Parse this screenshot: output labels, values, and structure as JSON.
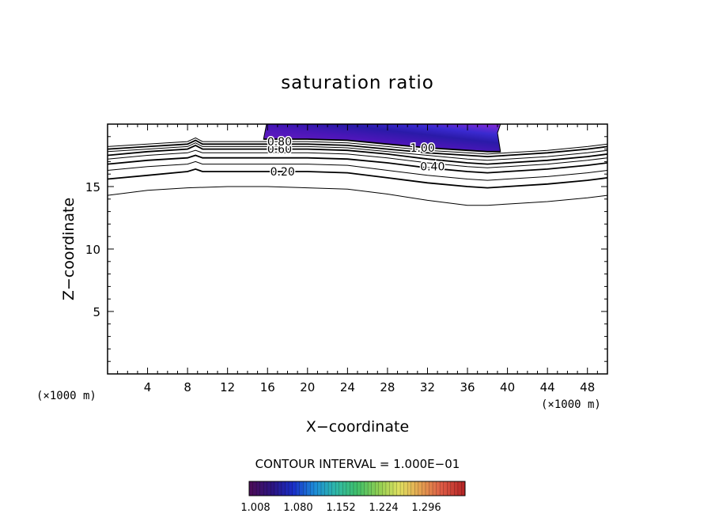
{
  "chart_data": {
    "type": "contour",
    "title": "saturation ratio",
    "xlabel": "X−coordinate",
    "ylabel": "Z−coordinate",
    "x_unit_label": "(×1000 m)",
    "z_unit_label": "(×1000 m)",
    "xlim": [
      0,
      50
    ],
    "ylim": [
      0,
      20
    ],
    "x_ticks": [
      4,
      8,
      12,
      16,
      20,
      24,
      28,
      32,
      36,
      40,
      44,
      48
    ],
    "x_tick_labels": [
      "4",
      "8",
      "12",
      "16",
      "20",
      "24",
      "28",
      "32",
      "36",
      "40",
      "44",
      "48"
    ],
    "y_ticks": [
      5,
      10,
      15
    ],
    "y_tick_labels": [
      "5",
      "10",
      "15"
    ],
    "contour_interval_text": "CONTOUR INTERVAL = 1.000E−01",
    "contour_labels": [
      {
        "text": "0.20",
        "x": 17.5,
        "z": 16.2
      },
      {
        "text": "0.40",
        "x": 32.5,
        "z": 16.6
      },
      {
        "text": "0.60",
        "x": 17.2,
        "z": 18.0
      },
      {
        "text": "0.80",
        "x": 17.2,
        "z": 18.6
      },
      {
        "text": "1.00",
        "x": 31.5,
        "z": 18.1
      }
    ],
    "contour_lines": [
      {
        "level": 0.1,
        "x": [
          0,
          4,
          8,
          12,
          16,
          20,
          24,
          28,
          32,
          36,
          38,
          40,
          44,
          48,
          50
        ],
        "z": [
          14.3,
          14.7,
          14.9,
          15.0,
          15.0,
          14.9,
          14.8,
          14.4,
          13.9,
          13.5,
          13.5,
          13.6,
          13.8,
          14.1,
          14.3
        ]
      },
      {
        "level": 0.2,
        "x": [
          0,
          4,
          8,
          8.8,
          9.5,
          12,
          16,
          20,
          24,
          28,
          32,
          36,
          38,
          40,
          44,
          48,
          50
        ],
        "z": [
          15.6,
          15.9,
          16.2,
          16.4,
          16.2,
          16.2,
          16.2,
          16.2,
          16.1,
          15.7,
          15.3,
          15.0,
          14.9,
          15.0,
          15.2,
          15.5,
          15.7
        ]
      },
      {
        "level": 0.3,
        "x": [
          0,
          4,
          8,
          8.8,
          9.5,
          12,
          16,
          20,
          24,
          28,
          32,
          36,
          38,
          40,
          44,
          48,
          50
        ],
        "z": [
          16.3,
          16.6,
          16.8,
          17.0,
          16.8,
          16.8,
          16.8,
          16.8,
          16.7,
          16.3,
          15.9,
          15.6,
          15.5,
          15.6,
          15.8,
          16.1,
          16.3
        ]
      },
      {
        "level": 0.4,
        "x": [
          0,
          4,
          8,
          8.8,
          9.5,
          12,
          16,
          20,
          24,
          28,
          32,
          36,
          38,
          40,
          44,
          48,
          50
        ],
        "z": [
          16.8,
          17.1,
          17.3,
          17.5,
          17.3,
          17.3,
          17.3,
          17.3,
          17.2,
          16.9,
          16.5,
          16.2,
          16.1,
          16.2,
          16.4,
          16.7,
          16.9
        ]
      },
      {
        "level": 0.5,
        "x": [
          0,
          4,
          8,
          8.8,
          9.5,
          12,
          16,
          20,
          24,
          28,
          32,
          36,
          38,
          40,
          44,
          48,
          50
        ],
        "z": [
          17.2,
          17.5,
          17.7,
          17.9,
          17.7,
          17.7,
          17.7,
          17.7,
          17.6,
          17.3,
          16.9,
          16.6,
          16.5,
          16.6,
          16.8,
          17.1,
          17.3
        ]
      },
      {
        "level": 0.6,
        "x": [
          0,
          4,
          8,
          8.8,
          9.5,
          12,
          16,
          20,
          24,
          28,
          32,
          36,
          38,
          40,
          44,
          48,
          50
        ],
        "z": [
          17.5,
          17.8,
          18.0,
          18.3,
          18.0,
          18.0,
          18.0,
          18.0,
          17.9,
          17.6,
          17.2,
          16.9,
          16.8,
          16.9,
          17.1,
          17.4,
          17.6
        ]
      },
      {
        "level": 0.7,
        "x": [
          0,
          4,
          8,
          8.8,
          9.5,
          12,
          16,
          20,
          24,
          28,
          32,
          36,
          38,
          40,
          44,
          48,
          50
        ],
        "z": [
          17.8,
          18.0,
          18.2,
          18.5,
          18.2,
          18.2,
          18.2,
          18.2,
          18.1,
          17.8,
          17.5,
          17.2,
          17.1,
          17.2,
          17.4,
          17.7,
          17.9
        ]
      },
      {
        "level": 0.8,
        "x": [
          0,
          4,
          8,
          8.8,
          9.5,
          12,
          16,
          20,
          24,
          28,
          32,
          36,
          38,
          40,
          44,
          48,
          50
        ],
        "z": [
          18.0,
          18.2,
          18.4,
          18.7,
          18.4,
          18.4,
          18.4,
          18.4,
          18.3,
          18.0,
          17.7,
          17.5,
          17.4,
          17.5,
          17.7,
          18.0,
          18.2
        ]
      },
      {
        "level": 0.9,
        "x": [
          0,
          4,
          8,
          8.8,
          9.5,
          12,
          16,
          20,
          24,
          28,
          32,
          36,
          38,
          40,
          44,
          48,
          50
        ],
        "z": [
          18.2,
          18.4,
          18.6,
          18.9,
          18.6,
          18.6,
          18.6,
          18.6,
          18.5,
          18.2,
          17.9,
          17.7,
          17.6,
          17.7,
          17.9,
          18.2,
          18.4
        ]
      },
      {
        "level": 1.0,
        "x": [
          15.6,
          16,
          20,
          24,
          28,
          32,
          36,
          38,
          39.3
        ],
        "z": [
          18.8,
          18.8,
          18.8,
          18.7,
          18.4,
          18.1,
          17.9,
          17.8,
          17.8
        ]
      }
    ],
    "shaded_region": {
      "description": "supersaturated region (ratio > 1.0)",
      "x": [
        15.6,
        15.9,
        39.3,
        39.0,
        39.3,
        38.0,
        36,
        32,
        28,
        24,
        20,
        16,
        15.6
      ],
      "z": [
        18.8,
        20.0,
        20.0,
        19.3,
        17.8,
        17.8,
        17.9,
        18.1,
        18.4,
        18.7,
        18.8,
        18.8,
        18.8
      ]
    },
    "colorbar": {
      "tick_labels": [
        "1.008",
        "1.080",
        "1.152",
        "1.224",
        "1.296"
      ],
      "colors": [
        "#4b0d5a",
        "#2b1480",
        "#1a2fc8",
        "#1d8cd8",
        "#2fb8a8",
        "#3fbf6a",
        "#8fce52",
        "#e0e060",
        "#e4a050",
        "#dd5a45",
        "#b62727"
      ]
    },
    "grid": false,
    "legend": "none"
  }
}
